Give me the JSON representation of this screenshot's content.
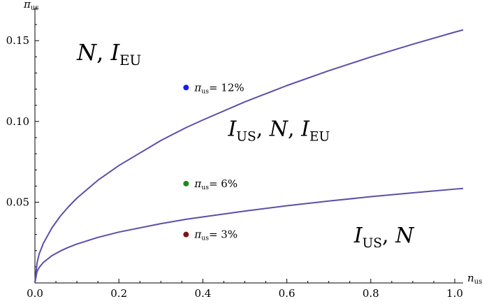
{
  "chart_data": {
    "type": "line",
    "x_axis": {
      "label": "n",
      "label_sub": "us",
      "range": [
        0,
        1.02
      ],
      "ticks": [
        0.0,
        0.2,
        0.4,
        0.6,
        0.8,
        1.0
      ],
      "tick_labels": [
        "0.0",
        "0.2",
        "0.4",
        "0.6",
        "0.8",
        "1.0"
      ]
    },
    "y_axis": {
      "label": "π",
      "label_sub": "us",
      "range": [
        0,
        0.17
      ],
      "ticks": [
        0.05,
        0.1,
        0.15
      ],
      "tick_labels": [
        "0.05",
        "0.10",
        "0.15"
      ]
    },
    "grid": false,
    "line_color": "#5b4fa8",
    "series": [
      {
        "curve": "upper",
        "x": [
          0.0,
          0.005,
          0.01,
          0.02,
          0.04,
          0.06,
          0.08,
          0.1,
          0.15,
          0.2,
          0.3,
          0.36,
          0.4,
          0.5,
          0.6,
          0.7,
          0.8,
          0.9,
          1.0,
          1.02
        ],
        "y": [
          0.0,
          0.0123,
          0.0179,
          0.0245,
          0.0339,
          0.0412,
          0.0472,
          0.0525,
          0.0636,
          0.0727,
          0.0882,
          0.0962,
          0.1009,
          0.1121,
          0.1222,
          0.1314,
          0.1399,
          0.1478,
          0.1553,
          0.1567
        ]
      },
      {
        "curve": "lower",
        "x": [
          0.0,
          0.005,
          0.01,
          0.02,
          0.04,
          0.06,
          0.08,
          0.1,
          0.15,
          0.2,
          0.3,
          0.36,
          0.4,
          0.5,
          0.6,
          0.7,
          0.8,
          0.9,
          1.0,
          1.02
        ],
        "y": [
          0.0,
          0.0071,
          0.0095,
          0.0127,
          0.0168,
          0.0197,
          0.0221,
          0.0241,
          0.0282,
          0.0315,
          0.0367,
          0.0394,
          0.0409,
          0.0445,
          0.0478,
          0.0507,
          0.0534,
          0.0558,
          0.0581,
          0.0585
        ]
      }
    ],
    "points": [
      {
        "x": 0.36,
        "y": 0.121,
        "color": "#1a1aee",
        "label_var": "π",
        "label_sub": "us",
        "label_value": "= 12%"
      },
      {
        "x": 0.36,
        "y": 0.0615,
        "color": "#1e8a1e",
        "label_var": "π",
        "label_sub": "us",
        "label_value": "= 6%"
      },
      {
        "x": 0.36,
        "y": 0.03,
        "color": "#7a1414",
        "label_var": "π",
        "label_sub": "us",
        "label_value": "= 3%"
      }
    ],
    "regions": [
      {
        "x": 0.1,
        "y": 0.138,
        "size": 32,
        "parts": [
          {
            "t": "N",
            "s": "it"
          },
          {
            "t": ", ",
            "s": ""
          },
          {
            "t": "I",
            "s": "it"
          },
          {
            "t": "EU",
            "s": "sub"
          }
        ]
      },
      {
        "x": 0.46,
        "y": 0.091,
        "size": 30,
        "parts": [
          {
            "t": "I",
            "s": "it"
          },
          {
            "t": "US",
            "s": "sub"
          },
          {
            "t": ", ",
            "s": ""
          },
          {
            "t": "N",
            "s": "it"
          },
          {
            "t": ", ",
            "s": ""
          },
          {
            "t": "I",
            "s": "it"
          },
          {
            "t": "EU",
            "s": "sub"
          }
        ]
      },
      {
        "x": 0.76,
        "y": 0.025,
        "size": 30,
        "parts": [
          {
            "t": "I",
            "s": "it"
          },
          {
            "t": "US",
            "s": "sub"
          },
          {
            "t": ", ",
            "s": ""
          },
          {
            "t": "N",
            "s": "it"
          }
        ]
      }
    ]
  }
}
